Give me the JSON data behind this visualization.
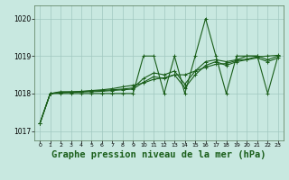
{
  "background_color": "#c8e8e0",
  "line_color": "#1a5e1a",
  "grid_color": "#a0c8c0",
  "xlabel": "Graphe pression niveau de la mer (hPa)",
  "xlabel_fontsize": 7.5,
  "xlim": [
    -0.5,
    23.5
  ],
  "ylim": [
    1016.75,
    1020.35
  ],
  "yticks": [
    1017,
    1018,
    1019,
    1020
  ],
  "xticks": [
    0,
    1,
    2,
    3,
    4,
    5,
    6,
    7,
    8,
    9,
    10,
    11,
    12,
    13,
    14,
    15,
    16,
    17,
    18,
    19,
    20,
    21,
    22,
    23
  ],
  "series": [
    [
      1017.2,
      1018.0,
      1018.0,
      1018.0,
      1018.0,
      1018.0,
      1018.0,
      1018.0,
      1018.0,
      1018.0,
      1019.0,
      1019.0,
      1018.0,
      1019.0,
      1018.0,
      1019.0,
      1020.0,
      1019.0,
      1018.0,
      1019.0,
      1019.0,
      1019.0,
      1018.0,
      1019.0
    ],
    [
      1017.2,
      1018.0,
      1018.05,
      1018.05,
      1018.05,
      1018.07,
      1018.08,
      1018.1,
      1018.12,
      1018.15,
      1018.4,
      1018.55,
      1018.5,
      1018.6,
      1018.25,
      1018.6,
      1018.85,
      1018.9,
      1018.85,
      1018.9,
      1019.0,
      1019.0,
      1018.9,
      1019.0
    ],
    [
      1017.2,
      1018.0,
      1018.03,
      1018.03,
      1018.04,
      1018.05,
      1018.06,
      1018.08,
      1018.1,
      1018.12,
      1018.3,
      1018.45,
      1018.4,
      1018.5,
      1018.15,
      1018.5,
      1018.75,
      1018.85,
      1018.75,
      1018.85,
      1018.9,
      1018.95,
      1018.85,
      1018.95
    ],
    [
      1017.2,
      1018.0,
      1018.02,
      1018.04,
      1018.06,
      1018.08,
      1018.1,
      1018.13,
      1018.18,
      1018.22,
      1018.28,
      1018.38,
      1018.42,
      1018.5,
      1018.5,
      1018.6,
      1018.7,
      1018.78,
      1018.8,
      1018.88,
      1018.92,
      1018.98,
      1019.0,
      1019.02
    ]
  ],
  "marker": "+",
  "markersize": 3.5,
  "linewidth": 0.8
}
